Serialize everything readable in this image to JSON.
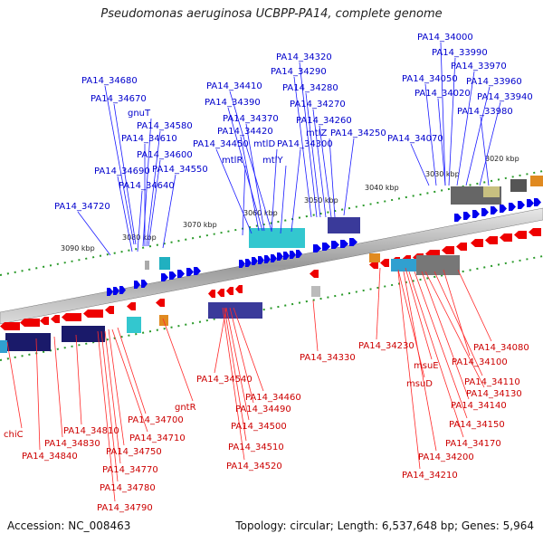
{
  "title": "Pseudomonas aeruginosa UCBPP-PA14, complete genome",
  "accession": "Accession: NC_008463",
  "summary": "Topology: circular; Length: 6,537,648 bp; Genes: 5,964",
  "colors": {
    "forward": "#0000ee",
    "reverse": "#ee0000",
    "backbone": "#888888",
    "ticks": "#008800",
    "label_blue": "#0000cc",
    "label_red": "#cc0000"
  },
  "ruler_ticks": [
    "3020 kbp",
    "3030 kbp",
    "3040 kbp",
    "3050 kbp",
    "3060 kbp",
    "3070 kbp",
    "3080 kbp",
    "3090 kbp"
  ],
  "forward_labels": [
    "PA14_34000",
    "PA14_33990",
    "PA14_33970",
    "PA14_33960",
    "PA14_34050",
    "PA14_33940",
    "PA14_34020",
    "PA14_33980",
    "PA14_34070",
    "PA14_34320",
    "PA14_34290",
    "PA14_34410",
    "PA14_34280",
    "PA14_34390",
    "PA14_34270",
    "PA14_34370",
    "PA14_34260",
    "PA14_34420",
    "mtlZ",
    "PA14_34250",
    "PA14_34450",
    "mtlD",
    "PA14_34300",
    "mtlR",
    "mtlY",
    "PA14_34680",
    "PA14_34670",
    "gnuT",
    "PA14_34580",
    "PA14_34610",
    "PA14_34600",
    "PA14_34690",
    "PA14_34550",
    "PA14_34640",
    "PA14_34720"
  ],
  "reverse_labels": [
    "PA14_34230",
    "PA14_34080",
    "msuE",
    "PA14_34100",
    "PA14_34110",
    "msuD",
    "PA14_34130",
    "PA14_34140",
    "PA14_34150",
    "PA14_34170",
    "PA14_34200",
    "PA14_34210",
    "PA14_34330",
    "PA14_34540",
    "PA14_34460",
    "PA14_34490",
    "PA14_34500",
    "PA14_34510",
    "PA14_34520",
    "gntR",
    "PA14_34700",
    "PA14_34710",
    "PA14_34750",
    "PA14_34770",
    "PA14_34780",
    "PA14_34790",
    "PA14_34810",
    "PA14_34830",
    "PA14_34840",
    "chiC"
  ]
}
